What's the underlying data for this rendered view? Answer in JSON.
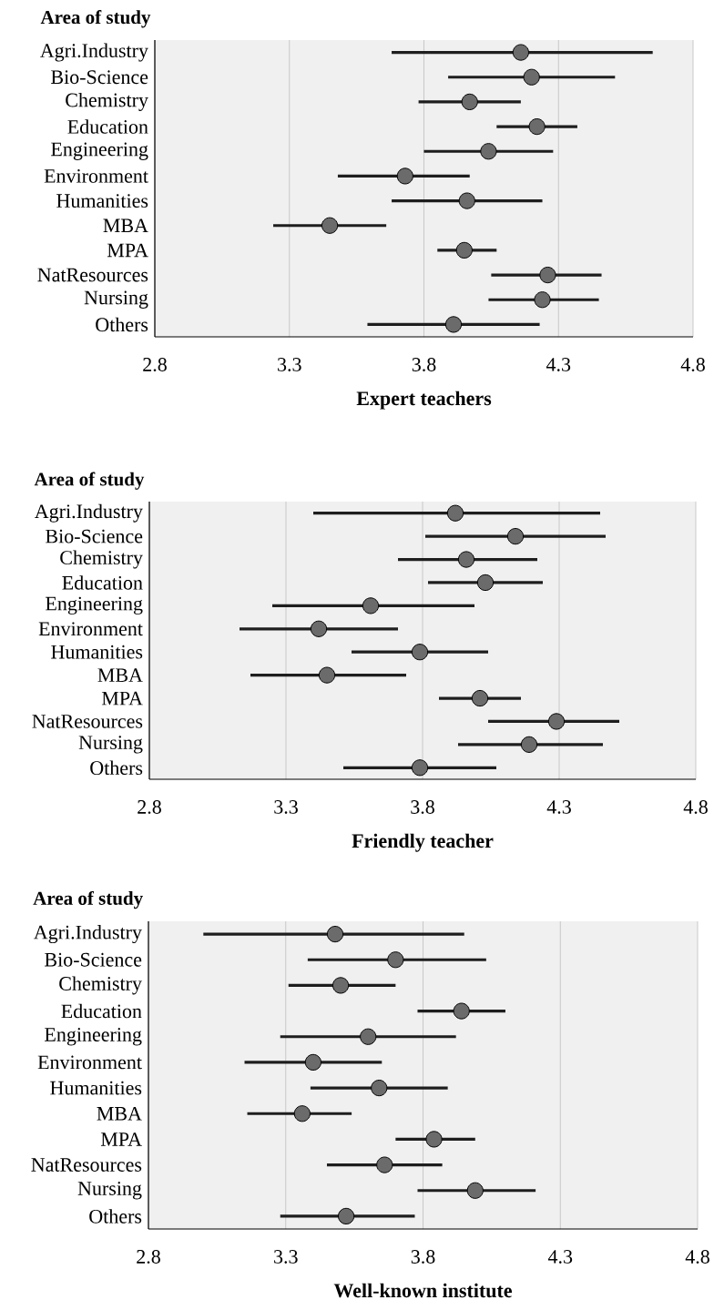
{
  "chart_data": [
    {
      "type": "scatter",
      "orientation": "horizontal",
      "xlabel": "Expert teachers",
      "ylabel": "Area of study",
      "categories": [
        "Agri.Industry",
        "Bio-Science",
        "Chemistry",
        "Education",
        "Engineering",
        "Environment",
        "Humanities",
        "MBA",
        "MPA",
        "NatResources",
        "Nursing",
        "Others"
      ],
      "values": [
        4.16,
        4.2,
        3.97,
        4.22,
        4.04,
        3.73,
        3.96,
        3.45,
        3.95,
        4.26,
        4.24,
        3.91
      ],
      "errors": [
        [
          3.68,
          4.65
        ],
        [
          3.89,
          4.51
        ],
        [
          3.78,
          4.16
        ],
        [
          4.07,
          4.37
        ],
        [
          3.8,
          4.28
        ],
        [
          3.48,
          3.97
        ],
        [
          3.68,
          4.24
        ],
        [
          3.24,
          3.66
        ],
        [
          3.85,
          4.07
        ],
        [
          4.05,
          4.46
        ],
        [
          4.04,
          4.45
        ],
        [
          3.59,
          4.23
        ]
      ],
      "color": "#6b6b6b",
      "marker": "circle",
      "grid": "x",
      "xlim": [
        2.8,
        4.8
      ],
      "xticks": [
        2.8,
        3.3,
        3.8,
        4.3,
        4.8
      ]
    },
    {
      "type": "scatter",
      "orientation": "horizontal",
      "xlabel": "Friendly teacher",
      "ylabel": "Area of study",
      "categories": [
        "Agri.Industry",
        "Bio-Science",
        "Chemistry",
        "Education",
        "Engineering",
        "Environment",
        "Humanities",
        "MBA",
        "MPA",
        "NatResources",
        "Nursing",
        "Others"
      ],
      "values": [
        3.92,
        4.14,
        3.96,
        4.03,
        3.61,
        3.42,
        3.79,
        3.45,
        4.01,
        4.29,
        4.19,
        3.79
      ],
      "errors": [
        [
          3.4,
          4.45
        ],
        [
          3.81,
          4.47
        ],
        [
          3.71,
          4.22
        ],
        [
          3.82,
          4.24
        ],
        [
          3.25,
          3.99
        ],
        [
          3.13,
          3.71
        ],
        [
          3.54,
          4.04
        ],
        [
          3.17,
          3.74
        ],
        [
          3.86,
          4.16
        ],
        [
          4.04,
          4.52
        ],
        [
          3.93,
          4.46
        ],
        [
          3.51,
          4.07
        ]
      ],
      "color": "#6b6b6b",
      "marker": "circle",
      "grid": "x",
      "xlim": [
        2.8,
        4.8
      ],
      "xticks": [
        2.8,
        3.3,
        3.8,
        4.3,
        4.8
      ]
    },
    {
      "type": "scatter",
      "orientation": "horizontal",
      "xlabel": "Well-known institute",
      "ylabel": "Area of study",
      "categories": [
        "Agri.Industry",
        "Bio-Science",
        "Chemistry",
        "Education",
        "Engineering",
        "Environment",
        "Humanities",
        "MBA",
        "MPA",
        "NatResources",
        "Nursing",
        "Others"
      ],
      "values": [
        3.48,
        3.7,
        3.5,
        3.94,
        3.6,
        3.4,
        3.64,
        3.36,
        3.84,
        3.66,
        3.99,
        3.52
      ],
      "errors": [
        [
          3.0,
          3.95
        ],
        [
          3.38,
          4.03
        ],
        [
          3.31,
          3.7
        ],
        [
          3.78,
          4.1
        ],
        [
          3.28,
          3.92
        ],
        [
          3.15,
          3.65
        ],
        [
          3.39,
          3.89
        ],
        [
          3.16,
          3.54
        ],
        [
          3.7,
          3.99
        ],
        [
          3.45,
          3.87
        ],
        [
          3.78,
          4.21
        ],
        [
          3.28,
          3.77
        ]
      ],
      "color": "#6b6b6b",
      "marker": "circle",
      "grid": "x",
      "xlim": [
        2.8,
        4.8
      ],
      "xticks": [
        2.8,
        3.3,
        3.8,
        4.3,
        4.8
      ]
    }
  ]
}
